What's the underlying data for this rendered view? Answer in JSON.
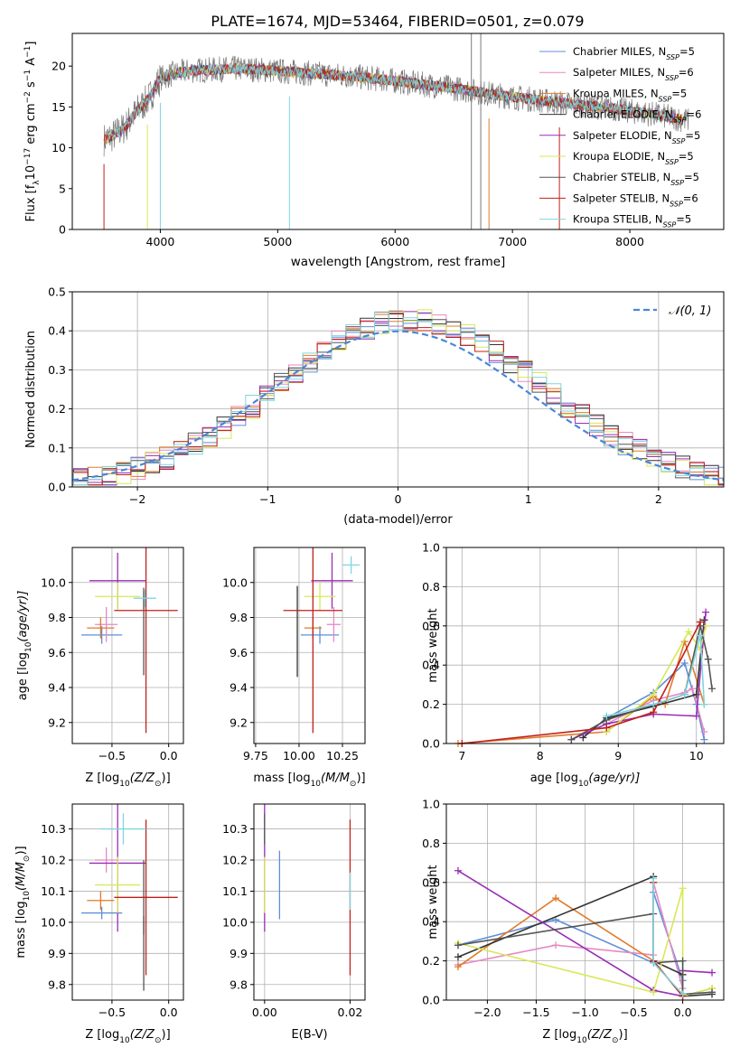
{
  "figure_title": "PLATE=1674, MJD=53464, FIBERID=0501, z=0.079",
  "colors": {
    "Chabrier MILES": "#5f8fd8",
    "Salpeter MILES": "#e58ac6",
    "Kroupa MILES": "#e07b2a",
    "Chabrier ELODIE": "#333333",
    "Salpeter ELODIE": "#9a2db5",
    "Kroupa ELODIE": "#d9e75a",
    "Chabrier STELIB": "#555555",
    "Salpeter STELIB": "#c0201b",
    "Kroupa STELIB": "#7fd6e0",
    "normal": "#4a86d8"
  },
  "chart_data": [
    {
      "id": "spectrum",
      "type": "line",
      "title": "PLATE=1674, MJD=53464, FIBERID=0501, z=0.079",
      "xlabel": "wavelength [Angstrom, rest frame]",
      "ylabel": "Flux [f",
      "ylabel_sub": "λ",
      "ylabel_mid": "10",
      "ylabel_sup1": "−17",
      "ylabel_rest": " erg cm",
      "ylabel_sup2": "−2",
      "ylabel_rest2": " s",
      "ylabel_sup3": "−1",
      "ylabel_rest3": " A",
      "ylabel_sup4": "−1",
      "ylabel_end": "]",
      "xlim": [
        3250,
        8800
      ],
      "ylim": [
        0,
        24
      ],
      "xticks": [
        "4000",
        "5000",
        "6000",
        "7000",
        "8000"
      ],
      "yticks": [
        "0",
        "5",
        "10",
        "15",
        "20"
      ],
      "grid": false,
      "legend_placement": "top-right",
      "legend": [
        {
          "pre": "Chabrier MILES, N",
          "sub": "SSP",
          "post": "=5"
        },
        {
          "pre": "Salpeter MILES, N",
          "sub": "SSP",
          "post": "=6"
        },
        {
          "pre": "Kroupa MILES, N",
          "sub": "SSP",
          "post": "=5"
        },
        {
          "pre": "Chabrier ELODIE, N",
          "sub": "SSP",
          "post": "=6"
        },
        {
          "pre": "Salpeter ELODIE, N",
          "sub": "SSP",
          "post": "=5"
        },
        {
          "pre": "Kroupa ELODIE, N",
          "sub": "SSP",
          "post": "=5"
        },
        {
          "pre": "Chabrier STELIB, N",
          "sub": "SSP",
          "post": "=5"
        },
        {
          "pre": "Salpeter STELIB, N",
          "sub": "SSP",
          "post": "=6"
        },
        {
          "pre": "Kroupa STELIB, N",
          "sub": "SSP",
          "post": "=5"
        }
      ],
      "continuum": {
        "x": [
          3520,
          3600,
          3700,
          3800,
          3900,
          4000,
          4100,
          4200,
          4300,
          4400,
          4500,
          4600,
          4800,
          5000,
          5200,
          5400,
          5600,
          5800,
          6000,
          6200,
          6400,
          6600,
          6800,
          7000,
          7200,
          7400,
          7600,
          7800,
          8000,
          8200,
          8400,
          8500
        ],
        "y": [
          11.0,
          11.5,
          12.5,
          14.5,
          16.0,
          18.5,
          19.0,
          19.3,
          19.5,
          19.5,
          19.6,
          19.7,
          19.6,
          19.4,
          19.2,
          19.0,
          18.8,
          18.5,
          18.2,
          17.8,
          17.5,
          17.1,
          16.6,
          16.2,
          15.9,
          15.5,
          15.2,
          14.9,
          14.5,
          14.1,
          13.6,
          13.3
        ]
      }
    },
    {
      "id": "residuals",
      "type": "line",
      "xlabel": "(data-model)/error",
      "ylabel": "Normed distribution",
      "xlim": [
        -2.5,
        2.5
      ],
      "ylim": [
        0,
        0.5
      ],
      "xticks": [
        "−2",
        "−1",
        "0",
        "1",
        "2"
      ],
      "yticks": [
        "0.0",
        "0.1",
        "0.2",
        "0.3",
        "0.4",
        "0.5"
      ],
      "grid": true,
      "legend_placement": "top-right",
      "legend": [
        "𝒩(0, 1)"
      ],
      "curve": "normal pdf, mean 0, sigma 1"
    },
    {
      "id": "age-vs-Z",
      "type": "scatter",
      "xlabel": "Z [log",
      "xlabel_sub": "10",
      "xlabel_tail": "(Z/Z",
      "xlabel_sub2": "⊙",
      "xlabel_end": ")]",
      "ylabel": "age  [log",
      "ylabel_sub": "10",
      "ylabel_end": "(age/yr)]",
      "xlim": [
        -0.85,
        0.13
      ],
      "ylim": [
        9.08,
        10.2
      ],
      "xticks": [
        "−0.5",
        "0.0"
      ],
      "yticks": [
        "9.2",
        "9.4",
        "9.6",
        "9.8",
        "10.0"
      ],
      "grid": true,
      "errorbars": [
        {
          "model": "Chabrier MILES",
          "x": -0.59,
          "xerr": 0.18,
          "y": 9.7,
          "yerr": 0.05
        },
        {
          "model": "Salpeter MILES",
          "x": -0.55,
          "xerr": 0.1,
          "y": 9.76,
          "yerr": 0.1
        },
        {
          "model": "Kroupa MILES",
          "x": -0.6,
          "xerr": 0.12,
          "y": 9.74,
          "yerr": 0.06
        },
        {
          "model": "Chabrier ELODIE",
          "x": -0.22,
          "xerr": 0.0,
          "y": 9.9,
          "yerr": 0.05
        },
        {
          "model": "Salpeter ELODIE",
          "x": -0.45,
          "xerr": 0.25,
          "y": 10.01,
          "yerr": 0.16
        },
        {
          "model": "Kroupa ELODIE",
          "x": -0.45,
          "xerr": 0.2,
          "y": 9.92,
          "yerr": 0.08
        },
        {
          "model": "Chabrier STELIB",
          "x": -0.22,
          "xerr": 0.0,
          "y": 9.72,
          "yerr": 0.25
        },
        {
          "model": "Salpeter STELIB",
          "x": -0.2,
          "xerr": 0.28,
          "y": 9.84,
          "yerr": 0.7
        },
        {
          "model": "Kroupa STELIB",
          "x": -0.21,
          "xerr": 0.1,
          "y": 9.91,
          "yerr": 0.05
        }
      ]
    },
    {
      "id": "age-vs-mass",
      "type": "scatter",
      "xlabel": "mass [log",
      "xlabel_sub": "10",
      "xlabel_tail": "(M/M",
      "xlabel_sub2": "⊙",
      "xlabel_end": ")]",
      "xlim": [
        9.74,
        10.38
      ],
      "ylim": [
        9.08,
        10.2
      ],
      "xticks": [
        "9.75",
        "10.00",
        "10.25"
      ],
      "yticks": [
        "9.2",
        "9.4",
        "9.6",
        "9.8",
        "10.0"
      ],
      "grid": true,
      "errorbars": [
        {
          "model": "Chabrier MILES",
          "x": 10.12,
          "xerr": 0.11,
          "y": 9.7,
          "yerr": 0.05
        },
        {
          "model": "Salpeter MILES",
          "x": 10.2,
          "xerr": 0.04,
          "y": 9.76,
          "yerr": 0.1
        },
        {
          "model": "Kroupa MILES",
          "x": 10.08,
          "xerr": 0.05,
          "y": 9.74,
          "yerr": 0.06
        },
        {
          "model": "Chabrier ELODIE",
          "x": 9.99,
          "xerr": 0.0,
          "y": 9.72,
          "yerr": 0.26
        },
        {
          "model": "Salpeter ELODIE",
          "x": 10.19,
          "xerr": 0.12,
          "y": 10.01,
          "yerr": 0.16
        },
        {
          "model": "Kroupa ELODIE",
          "x": 10.12,
          "xerr": 0.09,
          "y": 9.92,
          "yerr": 0.08
        },
        {
          "model": "Chabrier STELIB",
          "x": 9.99,
          "xerr": 0.0,
          "y": 9.9,
          "yerr": 0.05
        },
        {
          "model": "Salpeter STELIB",
          "x": 10.08,
          "xerr": 0.17,
          "y": 9.84,
          "yerr": 0.7
        },
        {
          "model": "Kroupa STELIB",
          "x": 10.3,
          "xerr": 0.05,
          "y": 10.1,
          "yerr": 0.05
        }
      ]
    },
    {
      "id": "weight-vs-age",
      "type": "line",
      "xlabel": "age  [log",
      "xlabel_sub": "10",
      "xlabel_end": "(age/yr)]",
      "ylabel": "mass weight",
      "xlim": [
        6.8,
        10.35
      ],
      "ylim": [
        0,
        1.0
      ],
      "xticks": [
        "7",
        "8",
        "9",
        "10"
      ],
      "yticks": [
        "0.0",
        "0.2",
        "0.4",
        "0.6",
        "0.8",
        "1.0"
      ],
      "grid": true,
      "series": [
        {
          "model": "Chabrier MILES",
          "x": [
            8.85,
            9.45,
            9.85,
            10.0,
            10.1
          ],
          "y": [
            0.13,
            0.26,
            0.41,
            0.2,
            0.02
          ]
        },
        {
          "model": "Salpeter MILES",
          "x": [
            8.85,
            9.45,
            9.85,
            9.95,
            10.1
          ],
          "y": [
            0.1,
            0.22,
            0.26,
            0.28,
            0.06
          ]
        },
        {
          "model": "Kroupa MILES",
          "x": [
            6.95,
            8.85,
            9.45,
            9.6,
            9.85,
            10.1
          ],
          "y": [
            0.0,
            0.06,
            0.24,
            0.2,
            0.52,
            0.2
          ]
        },
        {
          "model": "Chabrier ELODIE",
          "x": [
            8.55,
            8.85,
            9.45,
            10.0,
            10.1
          ],
          "y": [
            0.03,
            0.13,
            0.19,
            0.25,
            0.63
          ]
        },
        {
          "model": "Salpeter ELODIE",
          "x": [
            8.4,
            8.85,
            9.45,
            10.0,
            10.12
          ],
          "y": [
            0.02,
            0.1,
            0.15,
            0.14,
            0.67
          ]
        },
        {
          "model": "Kroupa ELODIE",
          "x": [
            8.85,
            9.45,
            9.9,
            10.05,
            10.12
          ],
          "y": [
            0.06,
            0.25,
            0.57,
            0.48,
            0.6
          ]
        },
        {
          "model": "Chabrier STELIB",
          "x": [
            8.4,
            8.85,
            9.85,
            10.05,
            10.15,
            10.2
          ],
          "y": [
            0.02,
            0.12,
            0.25,
            0.6,
            0.43,
            0.28
          ]
        },
        {
          "model": "Salpeter STELIB",
          "x": [
            7.0,
            8.85,
            9.45,
            10.05
          ],
          "y": [
            0.0,
            0.08,
            0.16,
            0.62
          ]
        },
        {
          "model": "Kroupa STELIB",
          "x": [
            8.85,
            9.45,
            9.85,
            10.05,
            10.1
          ],
          "y": [
            0.14,
            0.2,
            0.25,
            0.55,
            0.2
          ]
        }
      ]
    },
    {
      "id": "mass-vs-Z",
      "type": "scatter",
      "xlabel": "Z [log",
      "xlabel_sub": "10",
      "xlabel_tail": "(Z/Z",
      "xlabel_sub2": "⊙",
      "xlabel_end": ")]",
      "ylabel": "mass [log",
      "ylabel_sub": "10",
      "ylabel_end": "(M/M",
      "ylabel_sub2": "⊙",
      "ylabel_end2": ")]",
      "xlim": [
        -0.85,
        0.13
      ],
      "ylim": [
        9.75,
        10.38
      ],
      "xticks": [
        "−0.5",
        "0.0"
      ],
      "yticks": [
        "9.8",
        "9.9",
        "10.0",
        "10.1",
        "10.2",
        "10.3"
      ],
      "grid": true,
      "errorbars": [
        {
          "model": "Chabrier MILES",
          "x": -0.59,
          "xerr": 0.18,
          "y": 10.03,
          "yerr": 0.02
        },
        {
          "model": "Salpeter MILES",
          "x": -0.55,
          "xerr": 0.1,
          "y": 10.2,
          "yerr": 0.04
        },
        {
          "model": "Kroupa MILES",
          "x": -0.6,
          "xerr": 0.12,
          "y": 10.07,
          "yerr": 0.03
        },
        {
          "model": "Chabrier ELODIE",
          "x": -0.22,
          "xerr": 0.0,
          "y": 9.99,
          "yerr": 0.03
        },
        {
          "model": "Salpeter ELODIE",
          "x": -0.45,
          "xerr": 0.25,
          "y": 10.19,
          "yerr": 0.22
        },
        {
          "model": "Kroupa ELODIE",
          "x": -0.45,
          "xerr": 0.2,
          "y": 10.12,
          "yerr": 0.09
        },
        {
          "model": "Chabrier STELIB",
          "x": -0.22,
          "xerr": 0.0,
          "y": 9.99,
          "yerr": 0.21
        },
        {
          "model": "Salpeter STELIB",
          "x": -0.2,
          "xerr": 0.28,
          "y": 10.08,
          "yerr": 0.25
        },
        {
          "model": "Kroupa STELIB",
          "x": -0.4,
          "xerr": 0.2,
          "y": 10.3,
          "yerr": 0.05
        }
      ]
    },
    {
      "id": "mass-vs-EBV",
      "type": "scatter",
      "xlabel": "E(B-V)",
      "xlim": [
        -0.0025,
        0.0235
      ],
      "ylim": [
        9.75,
        10.38
      ],
      "xticks": [
        "0.00",
        "0.02"
      ],
      "yticks": [
        "9.8",
        "9.9",
        "10.0",
        "10.1",
        "10.2",
        "10.3"
      ],
      "grid": true,
      "errorbars": [
        {
          "model": "Chabrier MILES",
          "x": 0.0035,
          "y": 10.12,
          "yerr": 0.11
        },
        {
          "model": "Salpeter ELODIE",
          "x": 0.0,
          "y": 10.19,
          "yerr": 0.22
        },
        {
          "model": "Kroupa ELODIE",
          "x": 0.0,
          "y": 10.12,
          "yerr": 0.09
        },
        {
          "model": "Chabrier STELIB",
          "x": 0.0,
          "y": 10.3,
          "yerr": 0.05
        },
        {
          "model": "Salpeter STELIB",
          "x": 0.02,
          "y": 10.08,
          "yerr": 0.25
        },
        {
          "model": "Kroupa STELIB",
          "x": 0.02,
          "y": 10.1,
          "yerr": 0.06
        }
      ]
    },
    {
      "id": "weight-vs-Z",
      "type": "line",
      "xlabel": "Z [log",
      "xlabel_sub": "10",
      "xlabel_tail": "(Z/Z",
      "xlabel_sub2": "⊙",
      "xlabel_end": ")]",
      "ylabel": "mass weight",
      "xlim": [
        -2.42,
        0.42
      ],
      "ylim": [
        0,
        1.0
      ],
      "xticks": [
        "−2.0",
        "−1.5",
        "−1.0",
        "−0.5",
        "0.0"
      ],
      "yticks": [
        "0.0",
        "0.2",
        "0.4",
        "0.6",
        "0.8",
        "1.0"
      ],
      "grid": true,
      "series": [
        {
          "model": "Chabrier MILES",
          "x": [
            -2.3,
            -1.3,
            -0.3,
            -0.3,
            0.0,
            0.0
          ],
          "y": [
            0.28,
            0.41,
            0.19,
            0.55,
            0.1,
            0.02
          ]
        },
        {
          "model": "Salpeter MILES",
          "x": [
            -2.3,
            -1.3,
            -0.3,
            -0.3,
            0.0
          ],
          "y": [
            0.18,
            0.28,
            0.23,
            0.6,
            0.06
          ]
        },
        {
          "model": "Kroupa MILES",
          "x": [
            -2.3,
            -1.3,
            -0.3,
            0.0,
            0.3
          ],
          "y": [
            0.17,
            0.52,
            0.2,
            0.02,
            0.06
          ]
        },
        {
          "model": "Chabrier ELODIE",
          "x": [
            -2.3,
            -0.3,
            -0.3,
            0.0,
            0.0,
            0.3
          ],
          "y": [
            0.22,
            0.63,
            0.2,
            0.13,
            0.02,
            0.03
          ]
        },
        {
          "model": "Salpeter ELODIE",
          "x": [
            -2.3,
            -0.3,
            0.0,
            0.0,
            0.3
          ],
          "y": [
            0.66,
            0.05,
            0.02,
            0.15,
            0.14
          ]
        },
        {
          "model": "Kroupa ELODIE",
          "x": [
            -2.3,
            -0.3,
            0.0,
            0.0,
            0.3
          ],
          "y": [
            0.29,
            0.04,
            0.57,
            0.02,
            0.06
          ]
        },
        {
          "model": "Chabrier STELIB",
          "x": [
            -2.3,
            -0.3,
            -0.3,
            0.0,
            0.0,
            0.3
          ],
          "y": [
            0.28,
            0.44,
            0.19,
            0.2,
            0.03,
            0.04
          ]
        },
        {
          "model": "Salpeter STELIB",
          "x": [
            -0.3,
            -0.3,
            0.0
          ],
          "y": [
            0.6,
            0.2,
            0.02
          ]
        },
        {
          "model": "Kroupa STELIB",
          "x": [
            -0.3,
            -0.3,
            0.0
          ],
          "y": [
            0.62,
            0.19,
            0.03
          ]
        }
      ]
    }
  ]
}
